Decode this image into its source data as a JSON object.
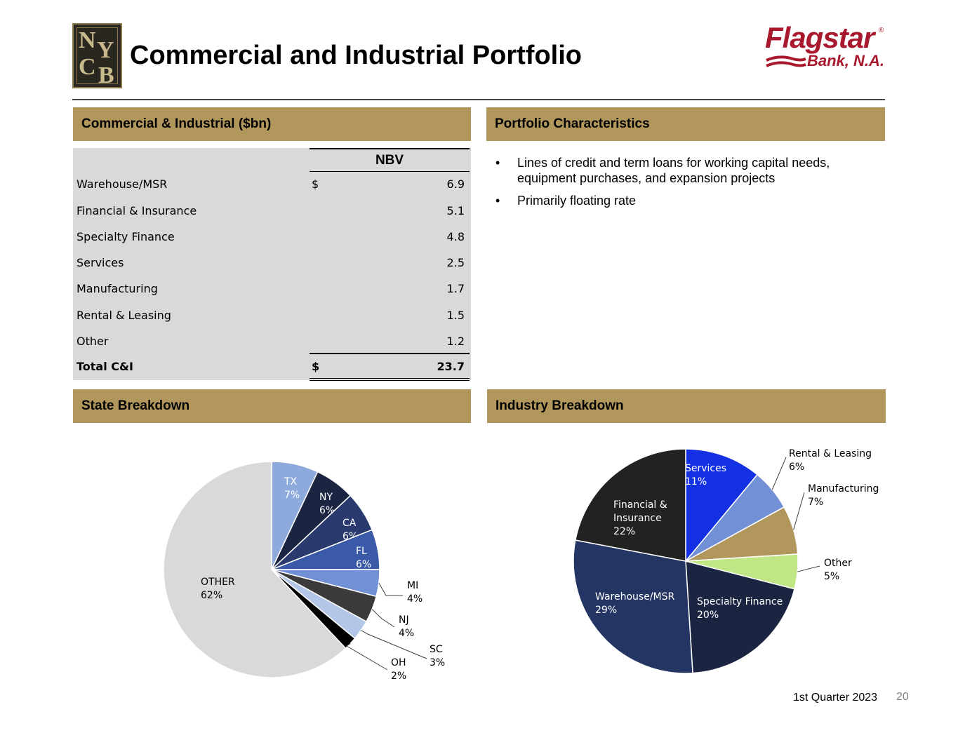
{
  "header": {
    "title": "Commercial and Industrial Portfolio",
    "nycb_logo_letters": [
      "N",
      "Y",
      "C",
      "B"
    ],
    "flagstar_logo_name": "Flagstar",
    "flagstar_logo_sub": "Bank, N.A."
  },
  "sections": {
    "ci_table_title": "Commercial & Industrial ($bn)",
    "characteristics_title": "Portfolio Characteristics",
    "state_title": "State Breakdown",
    "industry_title": "Industry Breakdown"
  },
  "ci_table": {
    "column_header": "NBV",
    "currency_symbol": "$",
    "rows": [
      {
        "label": "Warehouse/MSR",
        "currency": "$",
        "value": "6.9"
      },
      {
        "label": "Financial & Insurance",
        "currency": "",
        "value": "5.1"
      },
      {
        "label": "Specialty Finance",
        "currency": "",
        "value": "4.8"
      },
      {
        "label": "Services",
        "currency": "",
        "value": "2.5"
      },
      {
        "label": "Manufacturing",
        "currency": "",
        "value": "1.7"
      },
      {
        "label": "Rental & Leasing",
        "currency": "",
        "value": "1.5"
      },
      {
        "label": "Other",
        "currency": "",
        "value": "1.2"
      }
    ],
    "total": {
      "label": "Total C&I",
      "currency": "$",
      "value": "23.7"
    }
  },
  "characteristics": {
    "bullet_symbol": "•",
    "bullets": [
      "Lines of credit and term loans for working capital needs, equipment purchases, and expansion projects",
      "Primarily floating rate"
    ]
  },
  "chart_data": [
    {
      "type": "pie",
      "title": "State Breakdown",
      "slices": [
        {
          "label": "TX",
          "value": 7,
          "color": "#8ea9db"
        },
        {
          "label": "NY",
          "value": 6,
          "color": "#1b2542"
        },
        {
          "label": "CA",
          "value": 6,
          "color": "#2a3a6e"
        },
        {
          "label": "FL",
          "value": 6,
          "color": "#3a5aa8"
        },
        {
          "label": "MI",
          "value": 4,
          "color": "#7190d6"
        },
        {
          "label": "NJ",
          "value": 4,
          "color": "#3b3b3b"
        },
        {
          "label": "SC",
          "value": 3,
          "color": "#b4c6e7"
        },
        {
          "label": "OH",
          "value": 2,
          "color": "#000000"
        },
        {
          "label": "OTHER",
          "value": 62,
          "color": "#d9d9d9"
        }
      ]
    },
    {
      "type": "pie",
      "title": "Industry Breakdown",
      "slices": [
        {
          "label": "Services",
          "value": 11,
          "color": "#1430e3"
        },
        {
          "label": "Rental & Leasing",
          "value": 6,
          "color": "#7190d6"
        },
        {
          "label": "Manufacturing",
          "value": 7,
          "color": "#b1975c"
        },
        {
          "label": "Other",
          "value": 5,
          "color": "#c1e685"
        },
        {
          "label": "Specialty Finance",
          "value": 20,
          "color": "#1b2542"
        },
        {
          "label": "Warehouse/MSR",
          "value": 29,
          "color": "#243563"
        },
        {
          "label": "Financial & Insurance",
          "value": 22,
          "color": "#222222"
        }
      ]
    }
  ],
  "footer": {
    "quarter": "1st Quarter 2023",
    "page_number": "20"
  }
}
